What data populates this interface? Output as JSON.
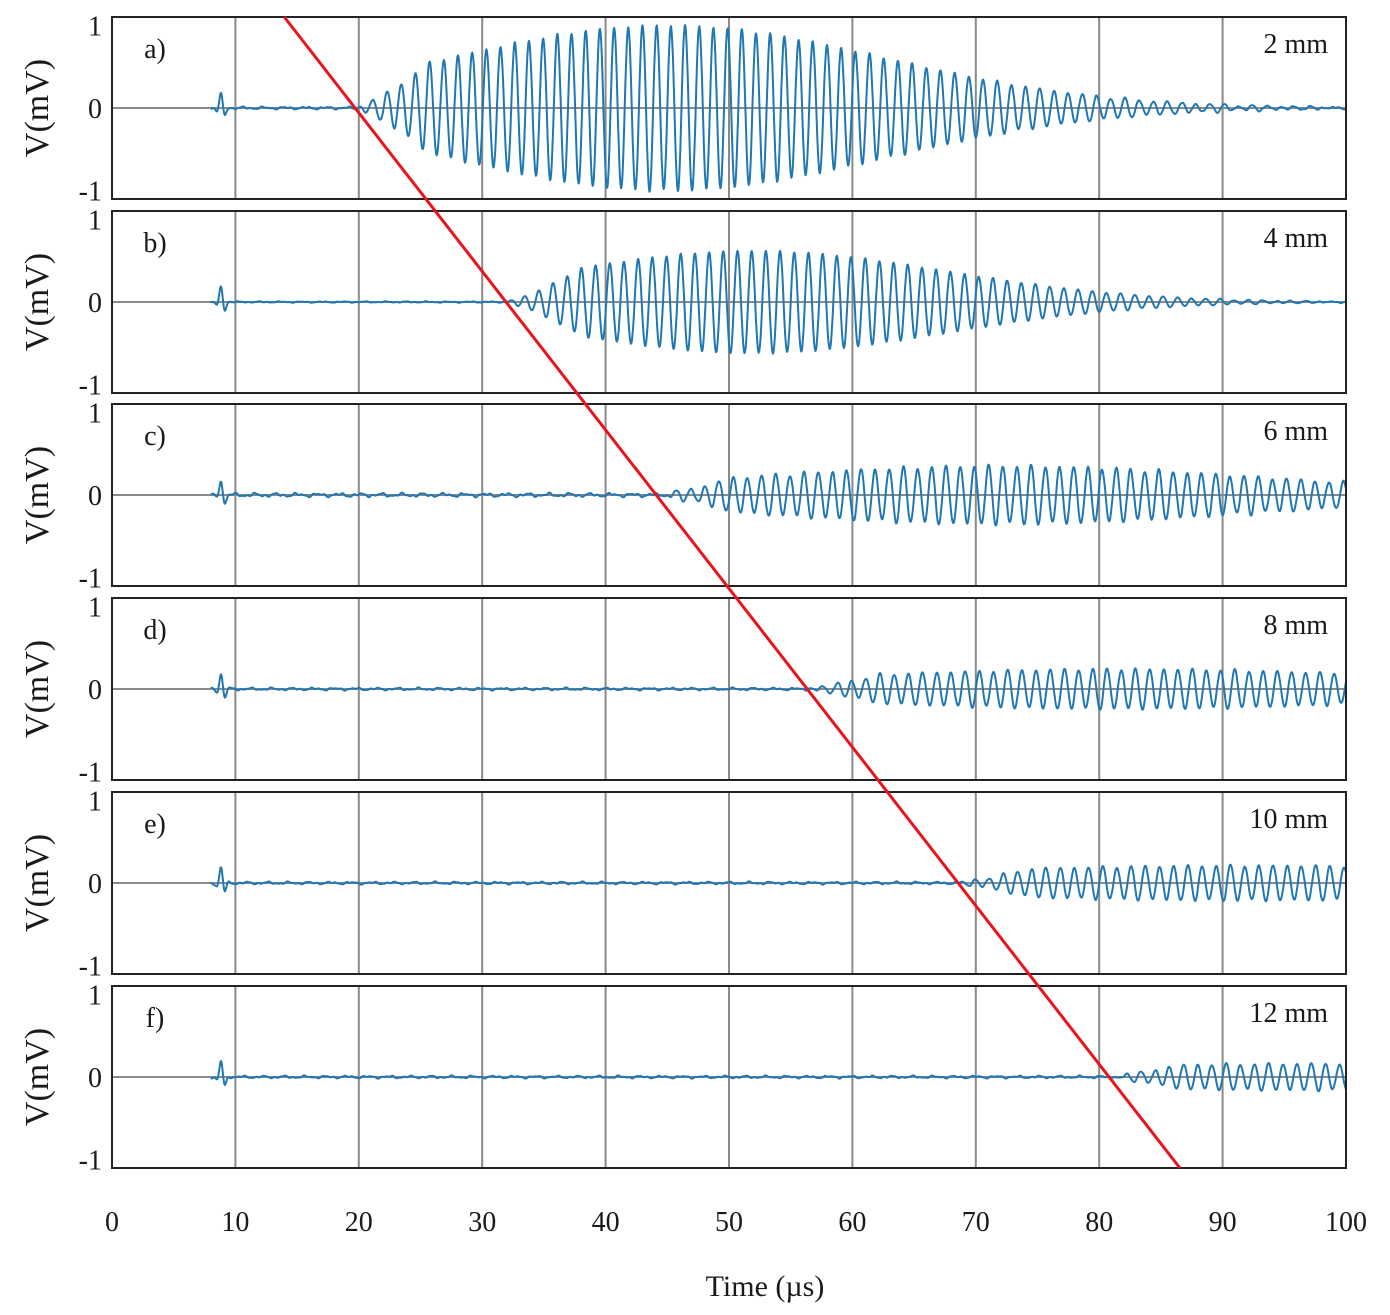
{
  "chart_data": {
    "type": "line",
    "title": "",
    "xlabel": "Time (µs)",
    "ylabel": "V(mV)",
    "xlim": [
      0,
      100
    ],
    "ylim": [
      -1.1,
      1.1
    ],
    "x_ticks": [
      0,
      10,
      20,
      30,
      40,
      50,
      60,
      70,
      80,
      90,
      100
    ],
    "x_tick_labels": [
      "0",
      "10",
      "20",
      "30",
      "40",
      "50",
      "60",
      "70",
      "80",
      "90",
      "100"
    ],
    "y_ticks": [
      1,
      0,
      -1
    ],
    "y_tick_labels": [
      "1",
      "0",
      "-1"
    ],
    "vertical_gridlines_at": [
      10,
      20,
      30,
      40,
      50,
      60,
      70,
      80,
      90
    ],
    "series_color": "#1f77b4",
    "trend_line_color": "#e8131b",
    "trend_line": {
      "description": "arrival-time line crossing all panels",
      "points": [
        {
          "distance_mm": 2,
          "time_us": 19.7
        },
        {
          "distance_mm": 4,
          "time_us": 32.0
        },
        {
          "distance_mm": 6,
          "time_us": 44.3
        },
        {
          "distance_mm": 8,
          "time_us": 56.2
        },
        {
          "distance_mm": 10,
          "time_us": 68.5
        },
        {
          "distance_mm": 12,
          "time_us": 80.8
        }
      ]
    },
    "panels": [
      {
        "letter": "a)",
        "distance": "2 mm",
        "onset_us": 19.7,
        "start_us": 8.0,
        "peak_amplitude_mV": 1.0,
        "peak_time_us": 45,
        "envelope_width_us": 25,
        "period_us": 1.15,
        "precursor_amplitude_mV": 0.02
      },
      {
        "letter": "b)",
        "distance": "4 mm",
        "onset_us": 32.0,
        "start_us": 8.0,
        "peak_amplitude_mV": 0.62,
        "peak_time_us": 52,
        "envelope_width_us": 22,
        "period_us": 1.15,
        "precursor_amplitude_mV": 0.01
      },
      {
        "letter": "c)",
        "distance": "6 mm",
        "onset_us": 44.3,
        "start_us": 8.0,
        "peak_amplitude_mV": 0.35,
        "peak_time_us": 72,
        "envelope_width_us": 30,
        "period_us": 1.15,
        "precursor_amplitude_mV": 0.03
      },
      {
        "letter": "d)",
        "distance": "8 mm",
        "onset_us": 56.2,
        "start_us": 8.0,
        "peak_amplitude_mV": 0.24,
        "peak_time_us": 82,
        "envelope_width_us": 35,
        "period_us": 1.15,
        "precursor_amplitude_mV": 0.02
      },
      {
        "letter": "e)",
        "distance": "10 mm",
        "onset_us": 68.5,
        "start_us": 8.0,
        "peak_amplitude_mV": 0.21,
        "peak_time_us": 92,
        "envelope_width_us": 40,
        "period_us": 1.15,
        "precursor_amplitude_mV": 0.02
      },
      {
        "letter": "f)",
        "distance": "12 mm",
        "onset_us": 80.8,
        "start_us": 8.0,
        "peak_amplitude_mV": 0.16,
        "peak_time_us": 100,
        "envelope_width_us": 45,
        "period_us": 1.15,
        "precursor_amplitude_mV": 0.02
      }
    ]
  }
}
